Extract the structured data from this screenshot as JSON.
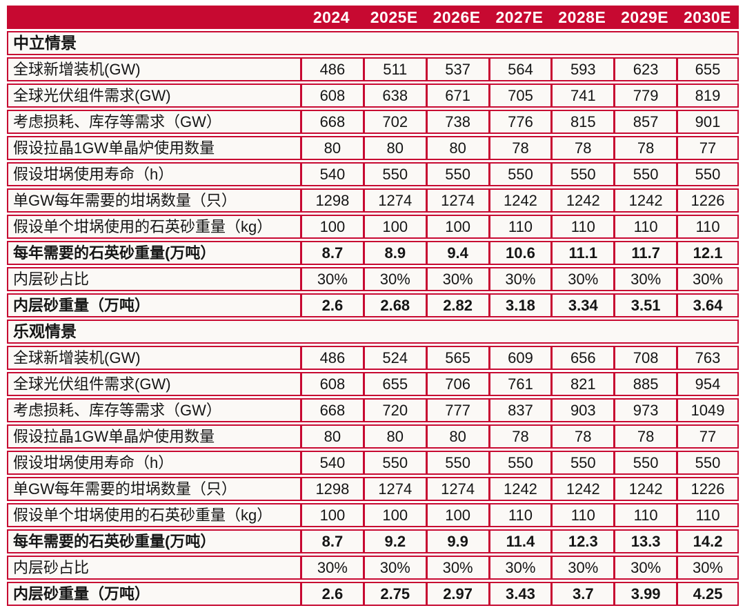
{
  "theme": {
    "accent": "#c70931",
    "cell_bg": "#fbf9f6",
    "header_text": "#ffffff",
    "body_text": "#151515"
  },
  "chart_data": {
    "type": "table",
    "corner_label": "",
    "columns": [
      "2024",
      "2025E",
      "2026E",
      "2027E",
      "2028E",
      "2029E",
      "2030E"
    ],
    "sections": [
      {
        "title": "中立情景",
        "rows": [
          {
            "label": "全球新增装机(GW)",
            "bold": false,
            "values": [
              "486",
              "511",
              "537",
              "564",
              "593",
              "623",
              "655"
            ]
          },
          {
            "label": "全球光伏组件需求(GW)",
            "bold": false,
            "values": [
              "608",
              "638",
              "671",
              "705",
              "741",
              "779",
              "819"
            ]
          },
          {
            "label": "考虑损耗、库存等需求（GW）",
            "bold": false,
            "values": [
              "668",
              "702",
              "738",
              "776",
              "815",
              "857",
              "901"
            ]
          },
          {
            "label": "假设拉晶1GW单晶炉使用数量",
            "bold": false,
            "values": [
              "80",
              "80",
              "80",
              "78",
              "78",
              "78",
              "77"
            ]
          },
          {
            "label": "假设坩埚使用寿命（h）",
            "bold": false,
            "values": [
              "540",
              "550",
              "550",
              "550",
              "550",
              "550",
              "550"
            ]
          },
          {
            "label": "单GW每年需要的坩埚数量（只）",
            "bold": false,
            "values": [
              "1298",
              "1274",
              "1274",
              "1242",
              "1242",
              "1242",
              "1226"
            ]
          },
          {
            "label": "假设单个坩埚使用的石英砂重量（kg）",
            "bold": false,
            "values": [
              "100",
              "100",
              "100",
              "110",
              "110",
              "110",
              "110"
            ]
          },
          {
            "label": "每年需要的石英砂重量(万吨）",
            "bold": true,
            "values": [
              "8.7",
              "8.9",
              "9.4",
              "10.6",
              "11.1",
              "11.7",
              "12.1"
            ]
          },
          {
            "label": "内层砂占比",
            "bold": false,
            "values": [
              "30%",
              "30%",
              "30%",
              "30%",
              "30%",
              "30%",
              "30%"
            ]
          },
          {
            "label": "内层砂重量（万吨）",
            "bold": true,
            "values": [
              "2.6",
              "2.68",
              "2.82",
              "3.18",
              "3.34",
              "3.51",
              "3.64"
            ]
          }
        ]
      },
      {
        "title": "乐观情景",
        "rows": [
          {
            "label": "全球新增装机(GW)",
            "bold": false,
            "values": [
              "486",
              "524",
              "565",
              "609",
              "656",
              "708",
              "763"
            ]
          },
          {
            "label": "全球光伏组件需求(GW)",
            "bold": false,
            "values": [
              "608",
              "655",
              "706",
              "761",
              "821",
              "885",
              "954"
            ]
          },
          {
            "label": "考虑损耗、库存等需求（GW）",
            "bold": false,
            "values": [
              "668",
              "720",
              "777",
              "837",
              "903",
              "973",
              "1049"
            ]
          },
          {
            "label": "假设拉晶1GW单晶炉使用数量",
            "bold": false,
            "values": [
              "80",
              "80",
              "80",
              "78",
              "78",
              "78",
              "77"
            ]
          },
          {
            "label": "假设坩埚使用寿命（h）",
            "bold": false,
            "values": [
              "540",
              "550",
              "550",
              "550",
              "550",
              "550",
              "550"
            ]
          },
          {
            "label": "单GW每年需要的坩埚数量（只）",
            "bold": false,
            "values": [
              "1298",
              "1274",
              "1274",
              "1242",
              "1242",
              "1242",
              "1226"
            ]
          },
          {
            "label": "假设单个坩埚使用的石英砂重量（kg）",
            "bold": false,
            "values": [
              "100",
              "100",
              "100",
              "110",
              "110",
              "110",
              "110"
            ]
          },
          {
            "label": "每年需要的石英砂重量(万吨）",
            "bold": true,
            "values": [
              "8.7",
              "9.2",
              "9.9",
              "11.4",
              "12.3",
              "13.3",
              "14.2"
            ]
          },
          {
            "label": "内层砂占比",
            "bold": false,
            "values": [
              "30%",
              "30%",
              "30%",
              "30%",
              "30%",
              "30%",
              "30%"
            ]
          },
          {
            "label": "内层砂重量（万吨）",
            "bold": true,
            "values": [
              "2.6",
              "2.75",
              "2.97",
              "3.43",
              "3.7",
              "3.99",
              "4.25"
            ]
          }
        ]
      }
    ]
  }
}
